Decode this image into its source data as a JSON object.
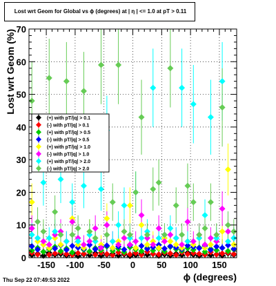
{
  "chart_data": {
    "type": "scatter",
    "title": "Lost wrt Geom for Global vs ϕ (degrees) at |  η | <= 1.0 at pT > 0.11",
    "xlabel": "ϕ (degrees)",
    "ylabel": "Lost wrt Geom (%)",
    "xlim": [
      -180,
      180
    ],
    "ylim": [
      0,
      70
    ],
    "x_ticks": [
      -150,
      -100,
      -50,
      0,
      50,
      100,
      150
    ],
    "y_ticks": [
      0,
      10,
      20,
      30,
      40,
      50,
      60,
      70
    ],
    "grid": true,
    "legend_position": "left-middle",
    "series": [
      {
        "name": "(+) with pT/|q| > 0.1",
        "color": "#000000",
        "x": [
          -175,
          -165,
          -155,
          -145,
          -135,
          -125,
          -115,
          -105,
          -95,
          -85,
          -75,
          -65,
          -55,
          -45,
          -35,
          -25,
          -15,
          -5,
          5,
          15,
          25,
          35,
          45,
          55,
          65,
          75,
          85,
          95,
          105,
          115,
          125,
          135,
          145,
          155,
          165,
          175
        ],
        "y": [
          0.8,
          1.2,
          0.6,
          1.5,
          0.9,
          1.1,
          0.7,
          1.3,
          0.5,
          1.0,
          0.8,
          1.4,
          0.6,
          0.9,
          1.2,
          0.7,
          1.0,
          0.5,
          0.8,
          1.3,
          0.9,
          1.1,
          0.6,
          1.0,
          0.7,
          1.2,
          0.8,
          1.5,
          0.9,
          0.6,
          1.1,
          0.8,
          1.0,
          0.7,
          1.3,
          0.9
        ]
      },
      {
        "name": "(-) with pT/|q| > 0.1",
        "color": "#ff0000",
        "x": [
          -175,
          -165,
          -155,
          -145,
          -135,
          -125,
          -115,
          -105,
          -95,
          -85,
          -75,
          -65,
          -55,
          -45,
          -35,
          -25,
          -15,
          -5,
          5,
          15,
          25,
          35,
          45,
          55,
          65,
          75,
          85,
          95,
          105,
          115,
          125,
          135,
          145,
          155,
          165,
          175
        ],
        "y": [
          1.5,
          1.0,
          1.8,
          0.9,
          1.3,
          1.6,
          1.1,
          0.8,
          1.4,
          1.2,
          1.7,
          0.9,
          1.5,
          1.1,
          0.8,
          1.6,
          1.3,
          1.0,
          1.4,
          0.9,
          1.8,
          1.2,
          1.0,
          1.5,
          1.3,
          0.8,
          1.6,
          1.1,
          1.4,
          1.2,
          0.9,
          1.7,
          1.0,
          1.3,
          1.5,
          1.1
        ]
      },
      {
        "name": "(+) with pT/|q| > 0.5",
        "color": "#00cc00",
        "x": [
          -175,
          -165,
          -155,
          -145,
          -135,
          -125,
          -115,
          -105,
          -95,
          -85,
          -75,
          -65,
          -55,
          -45,
          -35,
          -25,
          -15,
          -5,
          5,
          15,
          25,
          35,
          45,
          55,
          65,
          75,
          85,
          95,
          105,
          115,
          125,
          135,
          145,
          155,
          165,
          175
        ],
        "y": [
          2.2,
          3.0,
          1.8,
          2.6,
          3.3,
          2.0,
          2.8,
          1.6,
          3.1,
          2.4,
          1.9,
          2.9,
          2.3,
          3.4,
          2.1,
          2.7,
          1.7,
          3.2,
          2.5,
          2.0,
          3.0,
          2.2,
          2.8,
          1.9,
          3.3,
          2.6,
          2.1,
          2.9,
          2.4,
          3.1,
          1.8,
          2.7,
          2.3,
          3.0,
          2.0,
          2.5
        ]
      },
      {
        "name": "(-) with pT/|q| > 0.5",
        "color": "#0000ff",
        "x": [
          -175,
          -165,
          -155,
          -145,
          -135,
          -125,
          -115,
          -105,
          -95,
          -85,
          -75,
          -65,
          -55,
          -45,
          -35,
          -25,
          -15,
          -5,
          5,
          15,
          25,
          35,
          45,
          55,
          65,
          75,
          85,
          95,
          105,
          115,
          125,
          135,
          145,
          155,
          165,
          175
        ],
        "y": [
          3.5,
          2.5,
          4.0,
          3.0,
          2.8,
          3.8,
          2.4,
          3.6,
          3.1,
          2.7,
          3.9,
          2.6,
          3.3,
          3.7,
          2.9,
          3.4,
          2.5,
          3.8,
          3.0,
          3.6,
          2.7,
          3.2,
          3.9,
          2.8,
          3.5,
          3.1,
          2.6,
          3.7,
          3.3,
          2.9,
          3.6,
          2.4,
          3.4,
          3.0,
          3.8,
          2.7
        ]
      },
      {
        "name": "(+) with pT/|q| > 1.0",
        "color": "#ffff00",
        "x": [
          -175,
          -165,
          -155,
          -145,
          -135,
          -125,
          -115,
          -105,
          -95,
          -85,
          -75,
          -65,
          -55,
          -45,
          -35,
          -25,
          -15,
          -5,
          5,
          15,
          25,
          35,
          45,
          55,
          65,
          75,
          85,
          95,
          105,
          115,
          125,
          135,
          145,
          155,
          165,
          175
        ],
        "y": [
          17,
          5,
          4,
          3,
          6,
          4,
          5,
          12,
          4,
          3,
          8,
          5,
          4,
          12,
          3,
          5,
          6,
          16,
          3,
          10,
          4,
          5,
          3,
          6,
          5,
          4,
          3,
          5,
          4,
          6,
          3,
          4,
          5,
          8,
          27,
          4
        ]
      },
      {
        "name": "(-) with pT/|q| > 1.0",
        "color": "#ff00ff",
        "x": [
          -175,
          -165,
          -155,
          -145,
          -135,
          -125,
          -115,
          -105,
          -95,
          -85,
          -75,
          -65,
          -55,
          -45,
          -35,
          -25,
          -15,
          -5,
          5,
          15,
          25,
          35,
          45,
          55,
          65,
          75,
          85,
          95,
          105,
          115,
          125,
          135,
          145,
          155,
          165,
          175
        ],
        "y": [
          9,
          6,
          5,
          4,
          7,
          8,
          5,
          11,
          6,
          4,
          5,
          9,
          3,
          10,
          5,
          4,
          6,
          4,
          5,
          13,
          6,
          4,
          9,
          5,
          7,
          6,
          4,
          11,
          5,
          7,
          4,
          6,
          5,
          15,
          8,
          6
        ]
      },
      {
        "name": "(+) with pT/|q| > 2.0",
        "color": "#00ffff",
        "x": [
          -175,
          -165,
          -155,
          -145,
          -135,
          -125,
          -115,
          -105,
          -95,
          -85,
          -75,
          -65,
          -55,
          -45,
          -35,
          -25,
          -15,
          -5,
          5,
          15,
          25,
          35,
          45,
          55,
          65,
          75,
          85,
          95,
          105,
          115,
          125,
          135,
          145,
          155,
          165,
          175
        ],
        "y": [
          7,
          6,
          23,
          6,
          8,
          24,
          5,
          17,
          5,
          22,
          7,
          5,
          21,
          39,
          5,
          10,
          16,
          6,
          20,
          6,
          8,
          52,
          6,
          7,
          9,
          6,
          52,
          5,
          47,
          6,
          13,
          43,
          6,
          54,
          5,
          6
        ]
      },
      {
        "name": "(-) with pT/|q| > 2.0",
        "color": "#66cc55",
        "x": [
          -175,
          -165,
          -155,
          -145,
          -135,
          -125,
          -115,
          -105,
          -95,
          -85,
          -75,
          -65,
          -55,
          -45,
          -35,
          -25,
          -15,
          -5,
          5,
          15,
          25,
          35,
          45,
          55,
          65,
          75,
          85,
          95,
          105,
          115,
          125,
          135,
          145,
          155,
          165,
          175
        ],
        "y": [
          48,
          11,
          8,
          55,
          14,
          7,
          54,
          7,
          9,
          51,
          8,
          6,
          59,
          7,
          17,
          59,
          8,
          7,
          20,
          43,
          7,
          21,
          23,
          7,
          58,
          16,
          7,
          22,
          17,
          7,
          9,
          17,
          7,
          46,
          10,
          8
        ]
      }
    ]
  },
  "footer": {
    "timestamp": "Thu Sep 22 07:49:53 2022"
  }
}
